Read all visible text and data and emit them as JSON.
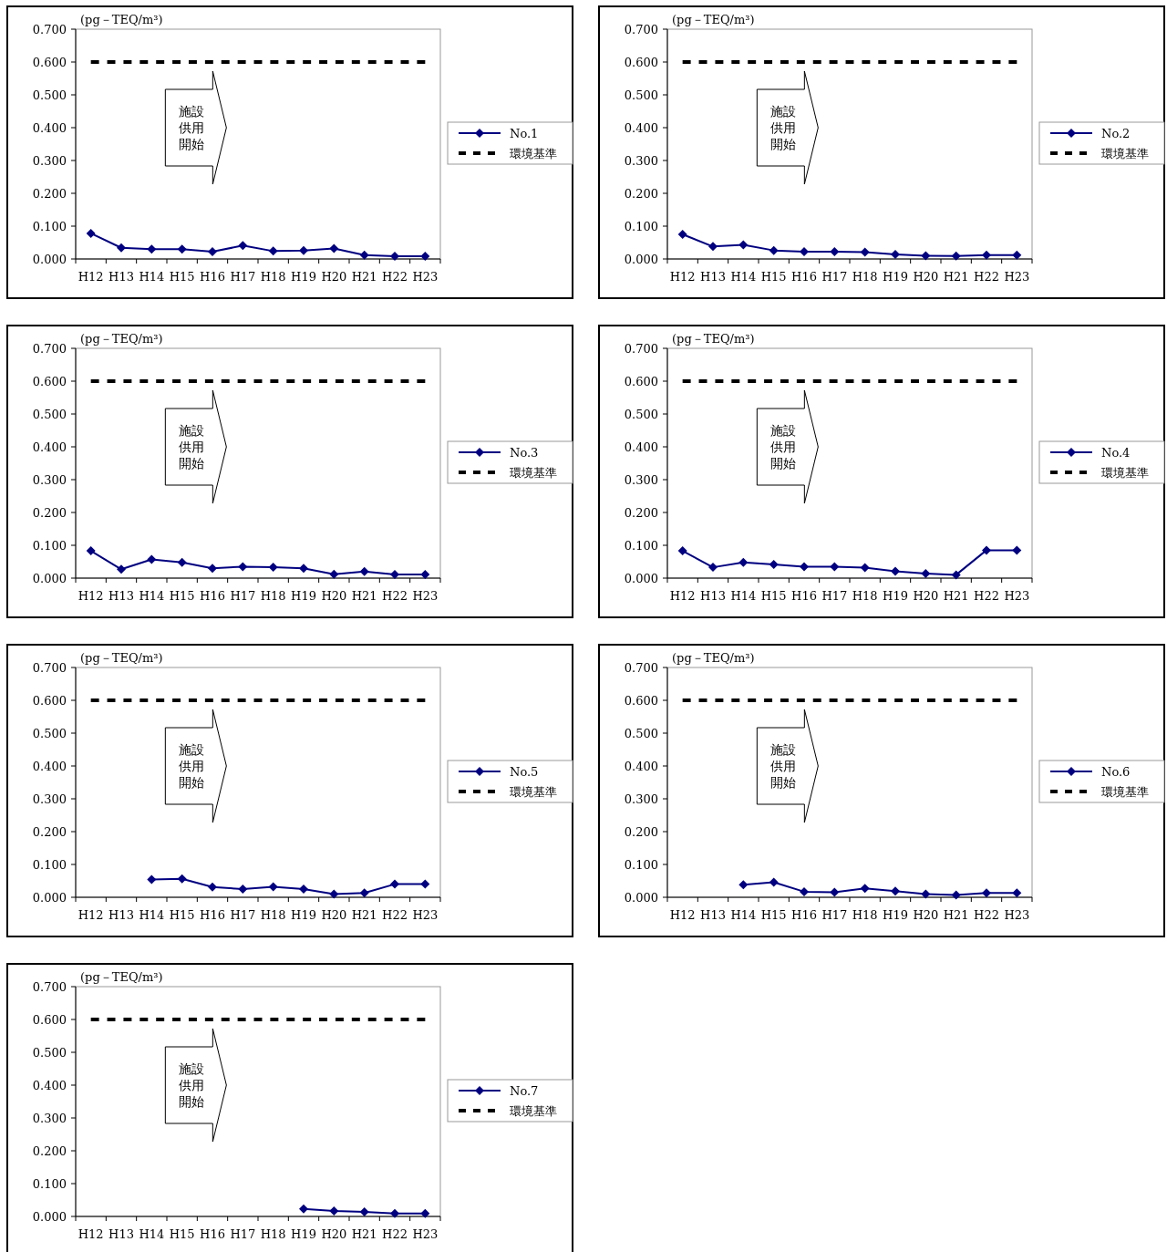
{
  "chart_data": [
    {
      "type": "line",
      "ylabel": "(pg－TEQ/m³)",
      "categories": [
        "H12",
        "H13",
        "H14",
        "H15",
        "H16",
        "H17",
        "H18",
        "H19",
        "H20",
        "H21",
        "H22",
        "H23"
      ],
      "ylim": [
        0,
        0.7
      ],
      "yticks": [
        {
          "value": 0,
          "label": "0.000"
        },
        {
          "value": 0.1,
          "label": "0.100"
        },
        {
          "value": 0.2,
          "label": "0.200"
        },
        {
          "value": 0.3,
          "label": "0.300"
        },
        {
          "value": 0.4,
          "label": "0.400"
        },
        {
          "value": 0.5,
          "label": "0.500"
        },
        {
          "value": 0.6,
          "label": "0.600"
        },
        {
          "value": 0.7,
          "label": "0.700"
        }
      ],
      "grid": false,
      "legend": "right",
      "annotations": [
        "施設供用開始"
      ],
      "series": [
        {
          "name": "No.1",
          "color": "#000080",
          "marker": "diamond",
          "line_style": "solid",
          "values": [
            0.078,
            0.034,
            0.03,
            0.03,
            0.022,
            0.041,
            0.024,
            0.026,
            0.032,
            0.012,
            0.008,
            0.008
          ]
        },
        {
          "name": "環境基準",
          "color": "#000000",
          "marker": "none",
          "line_style": "dashed",
          "values": [
            0.6,
            0.6,
            0.6,
            0.6,
            0.6,
            0.6,
            0.6,
            0.6,
            0.6,
            0.6,
            0.6,
            0.6
          ]
        }
      ]
    },
    {
      "type": "line",
      "ylabel": "(pg－TEQ/m³)",
      "categories": [
        "H12",
        "H13",
        "H14",
        "H15",
        "H16",
        "H17",
        "H18",
        "H19",
        "H20",
        "H21",
        "H22",
        "H23"
      ],
      "ylim": [
        0,
        0.7
      ],
      "yticks": [
        {
          "value": 0,
          "label": "0.000"
        },
        {
          "value": 0.1,
          "label": "0.100"
        },
        {
          "value": 0.2,
          "label": "0.200"
        },
        {
          "value": 0.3,
          "label": "0.300"
        },
        {
          "value": 0.4,
          "label": "0.400"
        },
        {
          "value": 0.5,
          "label": "0.500"
        },
        {
          "value": 0.6,
          "label": "0.600"
        },
        {
          "value": 0.7,
          "label": "0.700"
        }
      ],
      "grid": false,
      "legend": "right",
      "annotations": [
        "施設供用開始"
      ],
      "series": [
        {
          "name": "No.2",
          "color": "#000080",
          "marker": "diamond",
          "line_style": "solid",
          "values": [
            0.075,
            0.038,
            0.043,
            0.026,
            0.022,
            0.022,
            0.021,
            0.014,
            0.01,
            0.009,
            0.012,
            0.012
          ]
        },
        {
          "name": "環境基準",
          "color": "#000000",
          "marker": "none",
          "line_style": "dashed",
          "values": [
            0.6,
            0.6,
            0.6,
            0.6,
            0.6,
            0.6,
            0.6,
            0.6,
            0.6,
            0.6,
            0.6,
            0.6
          ]
        }
      ]
    },
    {
      "type": "line",
      "ylabel": "(pg－TEQ/m³)",
      "categories": [
        "H12",
        "H13",
        "H14",
        "H15",
        "H16",
        "H17",
        "H18",
        "H19",
        "H20",
        "H21",
        "H22",
        "H23"
      ],
      "ylim": [
        0,
        0.7
      ],
      "yticks": [
        {
          "value": 0,
          "label": "0.000"
        },
        {
          "value": 0.1,
          "label": "0.100"
        },
        {
          "value": 0.2,
          "label": "0.200"
        },
        {
          "value": 0.3,
          "label": "0.300"
        },
        {
          "value": 0.4,
          "label": "0.400"
        },
        {
          "value": 0.5,
          "label": "0.500"
        },
        {
          "value": 0.6,
          "label": "0.600"
        },
        {
          "value": 0.7,
          "label": "0.700"
        }
      ],
      "grid": false,
      "legend": "right",
      "annotations": [
        "施設供用開始"
      ],
      "series": [
        {
          "name": "No.3",
          "color": "#000080",
          "marker": "diamond",
          "line_style": "solid",
          "values": [
            0.083,
            0.027,
            0.057,
            0.048,
            0.03,
            0.035,
            0.033,
            0.03,
            0.012,
            0.02,
            0.011,
            0.011
          ]
        },
        {
          "name": "環境基準",
          "color": "#000000",
          "marker": "none",
          "line_style": "dashed",
          "values": [
            0.6,
            0.6,
            0.6,
            0.6,
            0.6,
            0.6,
            0.6,
            0.6,
            0.6,
            0.6,
            0.6,
            0.6
          ]
        }
      ]
    },
    {
      "type": "line",
      "ylabel": "(pg－TEQ/m³)",
      "categories": [
        "H12",
        "H13",
        "H14",
        "H15",
        "H16",
        "H17",
        "H18",
        "H19",
        "H20",
        "H21",
        "H22",
        "H23"
      ],
      "ylim": [
        0,
        0.7
      ],
      "yticks": [
        {
          "value": 0,
          "label": "0.000"
        },
        {
          "value": 0.1,
          "label": "0.100"
        },
        {
          "value": 0.2,
          "label": "0.200"
        },
        {
          "value": 0.3,
          "label": "0.300"
        },
        {
          "value": 0.4,
          "label": "0.400"
        },
        {
          "value": 0.5,
          "label": "0.500"
        },
        {
          "value": 0.6,
          "label": "0.600"
        },
        {
          "value": 0.7,
          "label": "0.700"
        }
      ],
      "grid": false,
      "legend": "right",
      "annotations": [
        "施設供用開始"
      ],
      "series": [
        {
          "name": "No.4",
          "color": "#000080",
          "marker": "diamond",
          "line_style": "solid",
          "values": [
            0.083,
            0.033,
            0.048,
            0.042,
            0.035,
            0.035,
            0.032,
            0.021,
            0.014,
            0.01,
            0.085,
            0.085
          ]
        },
        {
          "name": "環境基準",
          "color": "#000000",
          "marker": "none",
          "line_style": "dashed",
          "values": [
            0.6,
            0.6,
            0.6,
            0.6,
            0.6,
            0.6,
            0.6,
            0.6,
            0.6,
            0.6,
            0.6,
            0.6
          ]
        }
      ]
    },
    {
      "type": "line",
      "ylabel": "(pg－TEQ/m³)",
      "categories": [
        "H12",
        "H13",
        "H14",
        "H15",
        "H16",
        "H17",
        "H18",
        "H19",
        "H20",
        "H21",
        "H22",
        "H23"
      ],
      "ylim": [
        0,
        0.7
      ],
      "yticks": [
        {
          "value": 0,
          "label": "0.000"
        },
        {
          "value": 0.1,
          "label": "0.100"
        },
        {
          "value": 0.2,
          "label": "0.200"
        },
        {
          "value": 0.3,
          "label": "0.300"
        },
        {
          "value": 0.4,
          "label": "0.400"
        },
        {
          "value": 0.5,
          "label": "0.500"
        },
        {
          "value": 0.6,
          "label": "0.600"
        },
        {
          "value": 0.7,
          "label": "0.700"
        }
      ],
      "grid": false,
      "legend": "right",
      "annotations": [
        "施設供用開始"
      ],
      "series": [
        {
          "name": "No.5",
          "color": "#000080",
          "marker": "diamond",
          "line_style": "solid",
          "values": [
            null,
            null,
            0.054,
            0.056,
            0.031,
            0.025,
            0.032,
            0.025,
            0.01,
            0.013,
            0.04,
            0.04
          ]
        },
        {
          "name": "環境基準",
          "color": "#000000",
          "marker": "none",
          "line_style": "dashed",
          "values": [
            0.6,
            0.6,
            0.6,
            0.6,
            0.6,
            0.6,
            0.6,
            0.6,
            0.6,
            0.6,
            0.6,
            0.6
          ]
        }
      ]
    },
    {
      "type": "line",
      "ylabel": "(pg－TEQ/m³)",
      "categories": [
        "H12",
        "H13",
        "H14",
        "H15",
        "H16",
        "H17",
        "H18",
        "H19",
        "H20",
        "H21",
        "H22",
        "H23"
      ],
      "ylim": [
        0,
        0.7
      ],
      "yticks": [
        {
          "value": 0,
          "label": "0.000"
        },
        {
          "value": 0.1,
          "label": "0.100"
        },
        {
          "value": 0.2,
          "label": "0.200"
        },
        {
          "value": 0.3,
          "label": "0.300"
        },
        {
          "value": 0.4,
          "label": "0.400"
        },
        {
          "value": 0.5,
          "label": "0.500"
        },
        {
          "value": 0.6,
          "label": "0.600"
        },
        {
          "value": 0.7,
          "label": "0.700"
        }
      ],
      "grid": false,
      "legend": "right",
      "annotations": [
        "施設供用開始"
      ],
      "series": [
        {
          "name": "No.6",
          "color": "#000080",
          "marker": "diamond",
          "line_style": "solid",
          "values": [
            null,
            null,
            0.038,
            0.046,
            0.017,
            0.015,
            0.027,
            0.019,
            0.01,
            0.007,
            0.013,
            0.013
          ]
        },
        {
          "name": "環境基準",
          "color": "#000000",
          "marker": "none",
          "line_style": "dashed",
          "values": [
            0.6,
            0.6,
            0.6,
            0.6,
            0.6,
            0.6,
            0.6,
            0.6,
            0.6,
            0.6,
            0.6,
            0.6
          ]
        }
      ]
    },
    {
      "type": "line",
      "ylabel": "(pg－TEQ/m³)",
      "categories": [
        "H12",
        "H13",
        "H14",
        "H15",
        "H16",
        "H17",
        "H18",
        "H19",
        "H20",
        "H21",
        "H22",
        "H23"
      ],
      "ylim": [
        0,
        0.7
      ],
      "yticks": [
        {
          "value": 0,
          "label": "0.000"
        },
        {
          "value": 0.1,
          "label": "0.100"
        },
        {
          "value": 0.2,
          "label": "0.200"
        },
        {
          "value": 0.3,
          "label": "0.300"
        },
        {
          "value": 0.4,
          "label": "0.400"
        },
        {
          "value": 0.5,
          "label": "0.500"
        },
        {
          "value": 0.6,
          "label": "0.600"
        },
        {
          "value": 0.7,
          "label": "0.700"
        }
      ],
      "grid": false,
      "legend": "right",
      "annotations": [
        "施設供用開始"
      ],
      "series": [
        {
          "name": "No.7",
          "color": "#000080",
          "marker": "diamond",
          "line_style": "solid",
          "values": [
            null,
            null,
            null,
            null,
            null,
            null,
            null,
            0.023,
            0.017,
            0.014,
            0.009,
            0.009
          ]
        },
        {
          "name": "環境基準",
          "color": "#000000",
          "marker": "none",
          "line_style": "dashed",
          "values": [
            0.6,
            0.6,
            0.6,
            0.6,
            0.6,
            0.6,
            0.6,
            0.6,
            0.6,
            0.6,
            0.6,
            0.6
          ]
        }
      ]
    }
  ]
}
